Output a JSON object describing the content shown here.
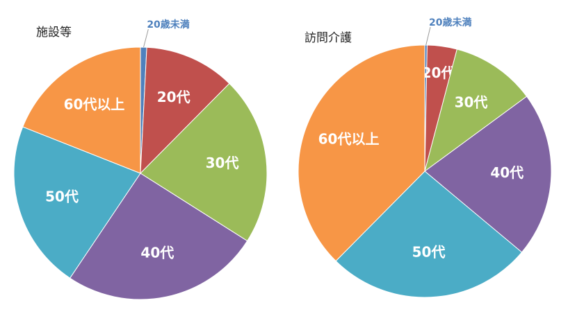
{
  "chart_data": [
    {
      "type": "pie",
      "title": "施設等",
      "categories": [
        "20歳未満",
        "20代",
        "30代",
        "40代",
        "50代",
        "60代以上"
      ],
      "values": [
        0.8,
        11.6,
        21.6,
        25.4,
        21.6,
        19.0
      ],
      "colors": [
        "#4f81bd",
        "#c0504d",
        "#9bbb59",
        "#8064a2",
        "#4bacc6",
        "#f79646"
      ]
    },
    {
      "type": "pie",
      "title": "訪問介護",
      "categories": [
        "20歳未満",
        "20代",
        "30代",
        "40代",
        "50代",
        "60代以上"
      ],
      "values": [
        0.3,
        3.8,
        10.8,
        21.2,
        26.3,
        37.6
      ],
      "colors": [
        "#4f81bd",
        "#c0504d",
        "#9bbb59",
        "#8064a2",
        "#4bacc6",
        "#f79646"
      ]
    }
  ]
}
